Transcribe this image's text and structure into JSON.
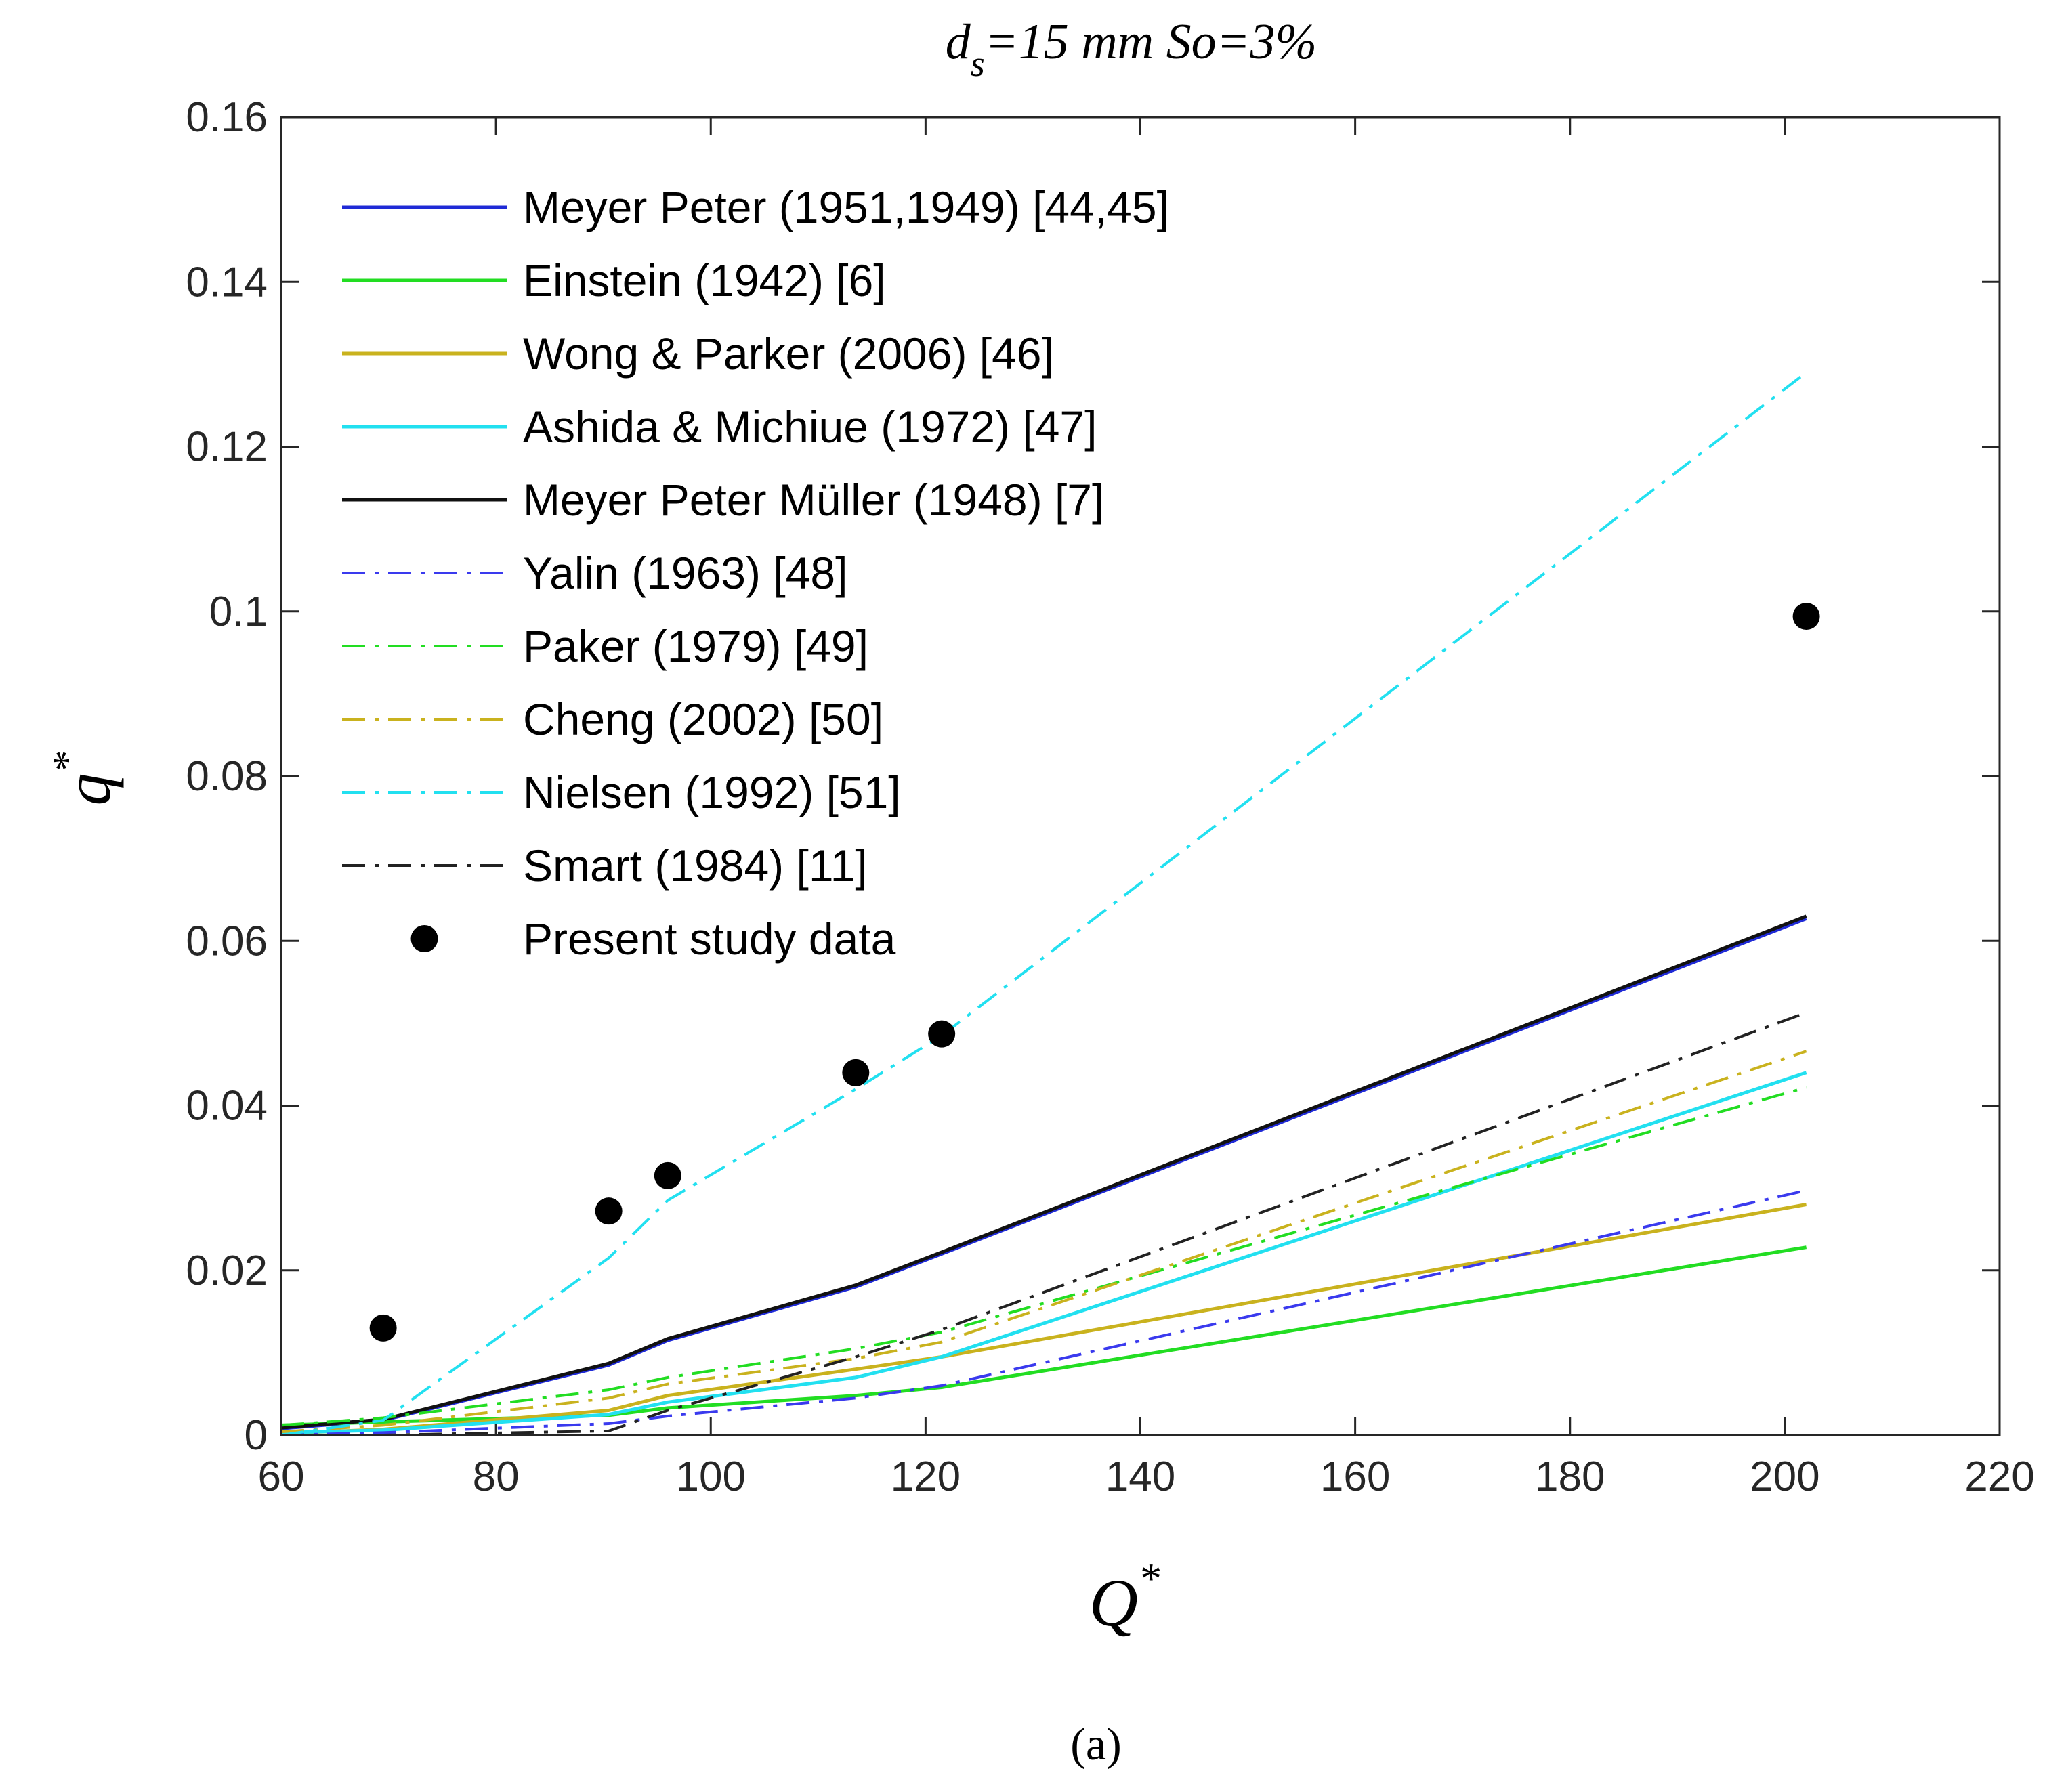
{
  "chart_data": {
    "type": "line",
    "title": {
      "prefix": "d",
      "subscript": "s",
      "rest": "=15 mm So=3%"
    },
    "xlabel": {
      "base": "Q",
      "sup": "*"
    },
    "ylabel": {
      "base": "q",
      "sup": "*"
    },
    "caption": "(a)",
    "xlim": [
      60,
      220
    ],
    "ylim": [
      0,
      0.16
    ],
    "xticks": [
      60,
      80,
      100,
      120,
      140,
      160,
      180,
      200,
      220
    ],
    "yticks": [
      0,
      0.02,
      0.04,
      0.06,
      0.08,
      0.1,
      0.12,
      0.14,
      0.16
    ],
    "xtick_labels": [
      "60",
      "80",
      "100",
      "120",
      "140",
      "160",
      "180",
      "200",
      "220"
    ],
    "ytick_labels": [
      "0",
      "0.02",
      "0.04",
      "0.06",
      "0.08",
      "0.1",
      "0.12",
      "0.14",
      "0.16"
    ],
    "grid": false,
    "legend_position": "top-left",
    "x": [
      60,
      69.5,
      90.5,
      96,
      113.5,
      121.5,
      202
    ],
    "series": [
      {
        "name": "Meyer Peter (1951,1949) [44,45]",
        "color": "#1f2ad6",
        "style": "solid",
        "values": [
          0.0008,
          0.0018,
          0.0085,
          0.0115,
          0.018,
          0.022,
          0.0627
        ]
      },
      {
        "name": "Einstein (1942) [6]",
        "color": "#22dd22",
        "style": "solid",
        "values": [
          0.0012,
          0.0016,
          0.0024,
          0.0033,
          0.0048,
          0.0058,
          0.0228
        ]
      },
      {
        "name": "Wong & Parker (2006) [46]",
        "color": "#c9b21e",
        "style": "solid",
        "values": [
          0.0002,
          0.0007,
          0.003,
          0.0048,
          0.008,
          0.0095,
          0.028
        ]
      },
      {
        "name": "Ashida & Michiue (1972) [47]",
        "color": "#22e0f0",
        "style": "solid",
        "values": [
          0.0003,
          0.0006,
          0.0025,
          0.004,
          0.007,
          0.0095,
          0.044
        ]
      },
      {
        "name": "Meyer Peter Müller (1948) [7]",
        "color": "#111111",
        "style": "solid",
        "values": [
          0.0009,
          0.0019,
          0.0087,
          0.0117,
          0.0182,
          0.0222,
          0.063
        ]
      },
      {
        "name": "Yalin (1963) [48]",
        "color": "#3a3aee",
        "style": "dashdot",
        "values": [
          0.0,
          0.0003,
          0.0014,
          0.0023,
          0.0045,
          0.006,
          0.0297
        ]
      },
      {
        "name": "Paker (1979) [49]",
        "color": "#22dd22",
        "style": "dashdot",
        "values": [
          0.0012,
          0.0021,
          0.0055,
          0.007,
          0.0105,
          0.0125,
          0.0422
        ]
      },
      {
        "name": "Cheng (2002) [50]",
        "color": "#c9b21e",
        "style": "dashdot",
        "values": [
          0.0004,
          0.0012,
          0.0045,
          0.0062,
          0.0093,
          0.0113,
          0.0466
        ]
      },
      {
        "name": "Nielsen (1992) [51]",
        "color": "#22e0f0",
        "style": "dashdot",
        "values": [
          0.0,
          0.0018,
          0.0215,
          0.0285,
          0.042,
          0.0485,
          0.129
        ]
      },
      {
        "name": "Smart (1984) [11]",
        "color": "#222222",
        "style": "dashdot",
        "values": [
          0.0,
          0.0,
          0.0005,
          0.003,
          0.0095,
          0.0128,
          0.0513
        ]
      }
    ],
    "scatter": {
      "name": "Present study data",
      "color": "#000000",
      "x": [
        69.5,
        90.5,
        96,
        113.5,
        121.5,
        202
      ],
      "y": [
        0.013,
        0.0272,
        0.0315,
        0.044,
        0.0487,
        0.0994
      ]
    }
  }
}
